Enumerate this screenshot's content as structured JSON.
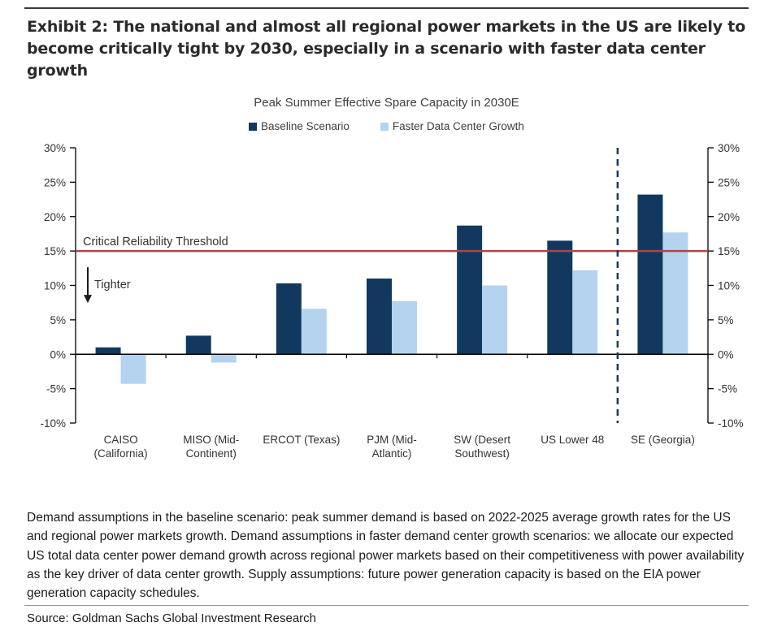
{
  "exhibit": {
    "title": "Exhibit 2: The national and almost all regional power markets in the US are likely to become critically tight by 2030, especially in a scenario with faster data center growth"
  },
  "chart_data": {
    "type": "bar",
    "title": "Peak Summer Effective Spare Capacity in 2030E",
    "categories": [
      "CAISO (California)",
      "MISO (Mid-Continent)",
      "ERCOT (Texas)",
      "PJM (Mid-Atlantic)",
      "SW (Desert Southwest)",
      "US Lower 48",
      "SE (Georgia)"
    ],
    "category_label_lines": [
      [
        "CAISO",
        "(California)"
      ],
      [
        "MISO (Mid-",
        "Continent)"
      ],
      [
        "ERCOT (Texas)"
      ],
      [
        "PJM (Mid-",
        "Atlantic)"
      ],
      [
        "SW (Desert",
        "Southwest)"
      ],
      [
        "US Lower 48"
      ],
      [
        "SE (Georgia)"
      ]
    ],
    "series": [
      {
        "name": "Baseline Scenario",
        "color": "#11395f",
        "values": [
          1.0,
          2.7,
          10.3,
          11.0,
          18.7,
          16.5,
          23.2
        ]
      },
      {
        "name": "Faster Data Center Growth",
        "color": "#b3d3ee",
        "values": [
          -4.3,
          -1.2,
          6.6,
          7.7,
          10.0,
          12.2,
          17.7
        ]
      }
    ],
    "ylabel": "",
    "xlabel": "",
    "ylim": [
      -10,
      30
    ],
    "ytick_step": 5,
    "ytick_suffix": "%",
    "grid": false,
    "dual_y_axis": true,
    "legend_position": "top",
    "threshold_line": {
      "value": 15,
      "label": "Critical Reliability Threshold",
      "color": "#ab4649"
    },
    "tighter_annotation": {
      "label": "Tighter",
      "arrow": "down"
    },
    "dashed_divider_after_category": "US Lower 48",
    "divider_color": "#1c3a57"
  },
  "notes": {
    "footnote": "Demand assumptions in the baseline scenario: peak summer demand is based on 2022-2025 average growth rates for the US and regional power markets growth. Demand assumptions in faster demand center growth scenarios: we allocate our expected US total data center power demand growth across regional power markets based on their competitiveness with power availability as the key driver of data center growth. Supply assumptions: future power generation capacity is based on the EIA power generation capacity schedules.",
    "source": "Source: Goldman Sachs Global Investment Research"
  }
}
